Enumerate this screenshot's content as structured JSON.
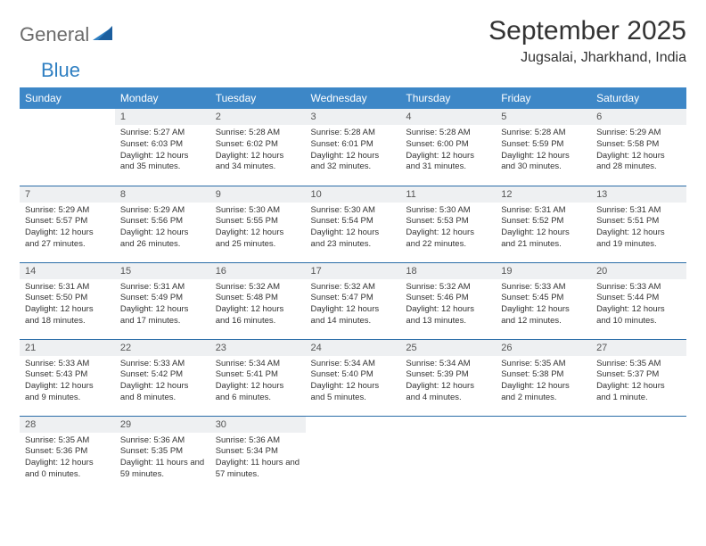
{
  "logo": {
    "general": "General",
    "blue": "Blue"
  },
  "title": "September 2025",
  "location": "Jugsalai, Jharkhand, India",
  "colors": {
    "header_bg": "#3d87c7",
    "header_text": "#ffffff",
    "daynum_bg": "#eef0f2",
    "row_border": "#2a6da8",
    "logo_gray": "#6b6b6b",
    "logo_blue": "#2f7fc2"
  },
  "weekdays": [
    "Sunday",
    "Monday",
    "Tuesday",
    "Wednesday",
    "Thursday",
    "Friday",
    "Saturday"
  ],
  "weeks": [
    [
      {
        "n": "",
        "sr": "",
        "ss": "",
        "dl": "",
        "empty": true
      },
      {
        "n": "1",
        "sr": "Sunrise: 5:27 AM",
        "ss": "Sunset: 6:03 PM",
        "dl": "Daylight: 12 hours and 35 minutes."
      },
      {
        "n": "2",
        "sr": "Sunrise: 5:28 AM",
        "ss": "Sunset: 6:02 PM",
        "dl": "Daylight: 12 hours and 34 minutes."
      },
      {
        "n": "3",
        "sr": "Sunrise: 5:28 AM",
        "ss": "Sunset: 6:01 PM",
        "dl": "Daylight: 12 hours and 32 minutes."
      },
      {
        "n": "4",
        "sr": "Sunrise: 5:28 AM",
        "ss": "Sunset: 6:00 PM",
        "dl": "Daylight: 12 hours and 31 minutes."
      },
      {
        "n": "5",
        "sr": "Sunrise: 5:28 AM",
        "ss": "Sunset: 5:59 PM",
        "dl": "Daylight: 12 hours and 30 minutes."
      },
      {
        "n": "6",
        "sr": "Sunrise: 5:29 AM",
        "ss": "Sunset: 5:58 PM",
        "dl": "Daylight: 12 hours and 28 minutes."
      }
    ],
    [
      {
        "n": "7",
        "sr": "Sunrise: 5:29 AM",
        "ss": "Sunset: 5:57 PM",
        "dl": "Daylight: 12 hours and 27 minutes."
      },
      {
        "n": "8",
        "sr": "Sunrise: 5:29 AM",
        "ss": "Sunset: 5:56 PM",
        "dl": "Daylight: 12 hours and 26 minutes."
      },
      {
        "n": "9",
        "sr": "Sunrise: 5:30 AM",
        "ss": "Sunset: 5:55 PM",
        "dl": "Daylight: 12 hours and 25 minutes."
      },
      {
        "n": "10",
        "sr": "Sunrise: 5:30 AM",
        "ss": "Sunset: 5:54 PM",
        "dl": "Daylight: 12 hours and 23 minutes."
      },
      {
        "n": "11",
        "sr": "Sunrise: 5:30 AM",
        "ss": "Sunset: 5:53 PM",
        "dl": "Daylight: 12 hours and 22 minutes."
      },
      {
        "n": "12",
        "sr": "Sunrise: 5:31 AM",
        "ss": "Sunset: 5:52 PM",
        "dl": "Daylight: 12 hours and 21 minutes."
      },
      {
        "n": "13",
        "sr": "Sunrise: 5:31 AM",
        "ss": "Sunset: 5:51 PM",
        "dl": "Daylight: 12 hours and 19 minutes."
      }
    ],
    [
      {
        "n": "14",
        "sr": "Sunrise: 5:31 AM",
        "ss": "Sunset: 5:50 PM",
        "dl": "Daylight: 12 hours and 18 minutes."
      },
      {
        "n": "15",
        "sr": "Sunrise: 5:31 AM",
        "ss": "Sunset: 5:49 PM",
        "dl": "Daylight: 12 hours and 17 minutes."
      },
      {
        "n": "16",
        "sr": "Sunrise: 5:32 AM",
        "ss": "Sunset: 5:48 PM",
        "dl": "Daylight: 12 hours and 16 minutes."
      },
      {
        "n": "17",
        "sr": "Sunrise: 5:32 AM",
        "ss": "Sunset: 5:47 PM",
        "dl": "Daylight: 12 hours and 14 minutes."
      },
      {
        "n": "18",
        "sr": "Sunrise: 5:32 AM",
        "ss": "Sunset: 5:46 PM",
        "dl": "Daylight: 12 hours and 13 minutes."
      },
      {
        "n": "19",
        "sr": "Sunrise: 5:33 AM",
        "ss": "Sunset: 5:45 PM",
        "dl": "Daylight: 12 hours and 12 minutes."
      },
      {
        "n": "20",
        "sr": "Sunrise: 5:33 AM",
        "ss": "Sunset: 5:44 PM",
        "dl": "Daylight: 12 hours and 10 minutes."
      }
    ],
    [
      {
        "n": "21",
        "sr": "Sunrise: 5:33 AM",
        "ss": "Sunset: 5:43 PM",
        "dl": "Daylight: 12 hours and 9 minutes."
      },
      {
        "n": "22",
        "sr": "Sunrise: 5:33 AM",
        "ss": "Sunset: 5:42 PM",
        "dl": "Daylight: 12 hours and 8 minutes."
      },
      {
        "n": "23",
        "sr": "Sunrise: 5:34 AM",
        "ss": "Sunset: 5:41 PM",
        "dl": "Daylight: 12 hours and 6 minutes."
      },
      {
        "n": "24",
        "sr": "Sunrise: 5:34 AM",
        "ss": "Sunset: 5:40 PM",
        "dl": "Daylight: 12 hours and 5 minutes."
      },
      {
        "n": "25",
        "sr": "Sunrise: 5:34 AM",
        "ss": "Sunset: 5:39 PM",
        "dl": "Daylight: 12 hours and 4 minutes."
      },
      {
        "n": "26",
        "sr": "Sunrise: 5:35 AM",
        "ss": "Sunset: 5:38 PM",
        "dl": "Daylight: 12 hours and 2 minutes."
      },
      {
        "n": "27",
        "sr": "Sunrise: 5:35 AM",
        "ss": "Sunset: 5:37 PM",
        "dl": "Daylight: 12 hours and 1 minute."
      }
    ],
    [
      {
        "n": "28",
        "sr": "Sunrise: 5:35 AM",
        "ss": "Sunset: 5:36 PM",
        "dl": "Daylight: 12 hours and 0 minutes."
      },
      {
        "n": "29",
        "sr": "Sunrise: 5:36 AM",
        "ss": "Sunset: 5:35 PM",
        "dl": "Daylight: 11 hours and 59 minutes."
      },
      {
        "n": "30",
        "sr": "Sunrise: 5:36 AM",
        "ss": "Sunset: 5:34 PM",
        "dl": "Daylight: 11 hours and 57 minutes."
      },
      {
        "n": "",
        "sr": "",
        "ss": "",
        "dl": "",
        "empty": true
      },
      {
        "n": "",
        "sr": "",
        "ss": "",
        "dl": "",
        "empty": true
      },
      {
        "n": "",
        "sr": "",
        "ss": "",
        "dl": "",
        "empty": true
      },
      {
        "n": "",
        "sr": "",
        "ss": "",
        "dl": "",
        "empty": true
      }
    ]
  ]
}
